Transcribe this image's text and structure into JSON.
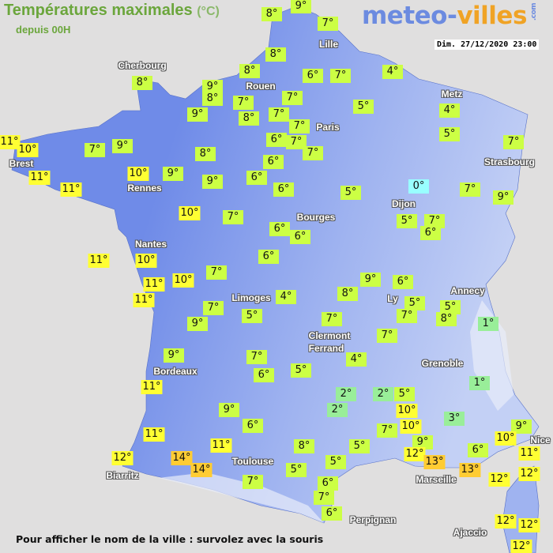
{
  "header": {
    "title": "Températures maximales",
    "unit": "(°C)",
    "subtitle": "depuis 00H",
    "datetime": "Dim. 27/12/2020 23:00"
  },
  "logo": {
    "part1": "meteo-",
    "part2": "villes",
    "suffix": ".com"
  },
  "footer": "Pour afficher le nom de la ville : survolez avec la souris",
  "colors": {
    "cold_0": "#99ffff",
    "cool_1_3": "#99ee99",
    "mild_4_9": "#ccff44",
    "warm_10_12": "#ffff33",
    "hot_13_14": "#ffcc33",
    "land_west": "#6f8be8",
    "land_east": "#a9bcf2",
    "sea": "#e0dfdf"
  },
  "cities": [
    "Cherbourg",
    "Rouen",
    "Lille",
    "Paris",
    "Metz",
    "Strasbourg",
    "Brest",
    "Rennes",
    "Dijon",
    "Bourges",
    "Nantes",
    "Limoges",
    "Annecy",
    "Ly",
    "Clermont",
    "Ferrand",
    "Grenoble",
    "Bordeaux",
    "Toulouse",
    "Biarritz",
    "Marseille",
    "Nice",
    "Perpignan",
    "Ajaccio"
  ],
  "readings": [
    "8°",
    "9°",
    "7°",
    "8°",
    "8°",
    "6°",
    "7°",
    "4°",
    "9°",
    "8°",
    "7°",
    "8°",
    "7°",
    "7°",
    "7°",
    "5°",
    "9°",
    "8°",
    "4°",
    "5°",
    "6°",
    "7°",
    "7°",
    "6°",
    "6°",
    "6°",
    "8°",
    "9°",
    "9°",
    "10°",
    "9°",
    "7°",
    "11°",
    "10°",
    "11°",
    "11°",
    "10°",
    "7°",
    "5°",
    "0°",
    "7°",
    "9°",
    "7°",
    "5°",
    "7°",
    "6°",
    "6°",
    "6°",
    "6°",
    "11°",
    "10°",
    "11°",
    "11°",
    "10°",
    "7°",
    "7°",
    "9°",
    "5°",
    "4°",
    "8°",
    "9°",
    "6°",
    "5°",
    "7°",
    "5°",
    "8°",
    "1°",
    "7°",
    "7°",
    "4°",
    "5°",
    "7°",
    "6°",
    "9°",
    "11°",
    "9°",
    "6°",
    "11°",
    "12°",
    "14°",
    "14°",
    "11°",
    "7°",
    "8°",
    "5°",
    "5°",
    "5°",
    "6°",
    "7°",
    "6°",
    "2°",
    "2°",
    "2°",
    "5°",
    "10°",
    "10°",
    "7°",
    "9°",
    "12°",
    "13°",
    "13°",
    "3°",
    "1°",
    "6°",
    "9°",
    "10°",
    "11°",
    "12°",
    "12°",
    "12°",
    "12°",
    "12°"
  ]
}
